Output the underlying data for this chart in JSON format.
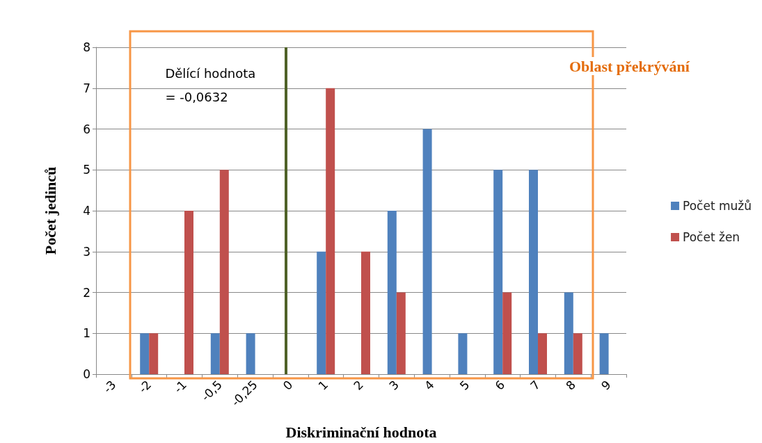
{
  "chart_data": {
    "type": "bar",
    "xlabel": "Diskriminační hodnota",
    "ylabel": "Počet jedinců",
    "categories": [
      "-3",
      "-2",
      "-1",
      "-0,5",
      "-0,25",
      "0",
      "1",
      "2",
      "3",
      "4",
      "5",
      "6",
      "7",
      "8",
      "9"
    ],
    "series": [
      {
        "name": "Počet mužů",
        "color": "#4f81bd",
        "values": [
          0,
          1,
          0,
          1,
          1,
          0,
          3,
          0,
          4,
          6,
          1,
          5,
          5,
          2,
          1
        ]
      },
      {
        "name": "Počet žen",
        "color": "#c0504d",
        "values": [
          0,
          1,
          4,
          5,
          0,
          0,
          7,
          3,
          2,
          0,
          0,
          2,
          1,
          1,
          0
        ]
      }
    ],
    "ylim": [
      0,
      8
    ],
    "yticks": [
      0,
      1,
      2,
      3,
      4,
      5,
      6,
      7,
      8
    ],
    "grid": "y",
    "legend": "right",
    "ref_lines": [
      {
        "axis": "x",
        "value": "0",
        "label": "Dělící hodnota = -0,0632",
        "color": "#4f6228"
      }
    ],
    "annotations": [
      "Oblast překrývání"
    ]
  }
}
